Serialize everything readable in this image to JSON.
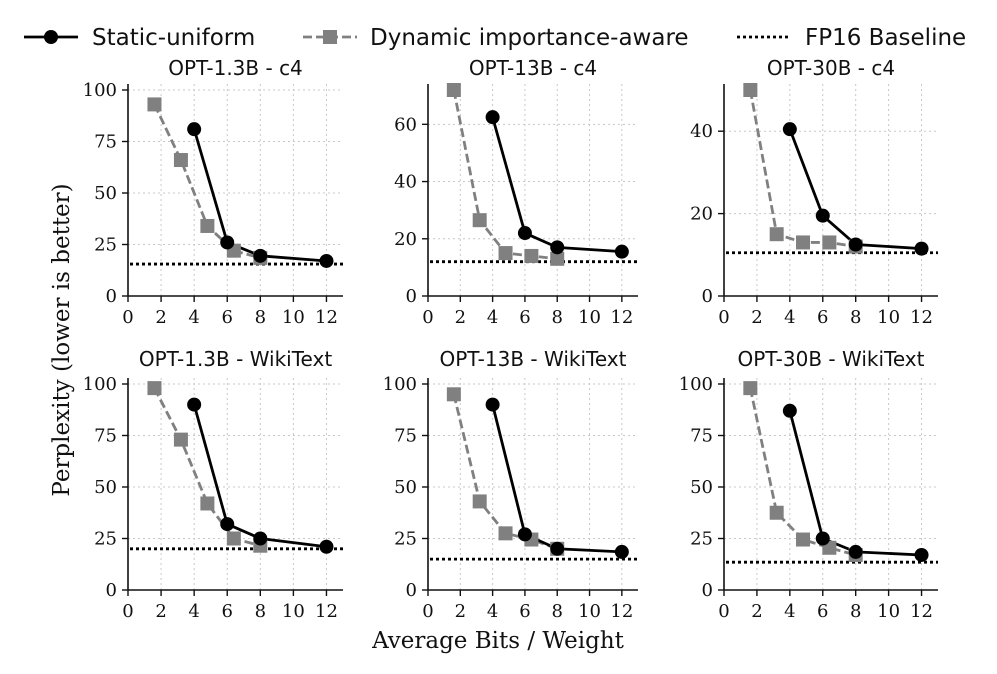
{
  "legend": {
    "static": "Static-uniform",
    "dynamic": "Dynamic importance-aware",
    "baseline": "FP16 Baseline"
  },
  "colors": {
    "static": "#000000",
    "dynamic": "#808080",
    "baseline": "#000000"
  },
  "figure": {
    "xlabel": "Average Bits / Weight",
    "ylabel": "Perplexity (lower is better)"
  },
  "chart_data": [
    {
      "type": "line",
      "title": "OPT-1.3B - c4",
      "xlim": [
        0,
        13
      ],
      "ylim": [
        0,
        100
      ],
      "xticks": [
        0,
        2,
        4,
        6,
        8,
        10,
        12
      ],
      "yticks": [
        0,
        25,
        50,
        75,
        100
      ],
      "series": [
        {
          "name": "Static-uniform",
          "x": [
            4,
            6,
            8,
            12
          ],
          "y": [
            81,
            26,
            19.5,
            17
          ]
        },
        {
          "name": "Dynamic importance-aware",
          "x": [
            1.6,
            3.2,
            4.8,
            6.4,
            8
          ],
          "y": [
            93,
            66,
            34,
            22,
            18.5
          ]
        }
      ],
      "baseline": 15.5
    },
    {
      "type": "line",
      "title": "OPT-13B - c4",
      "xlim": [
        0,
        13
      ],
      "ylim": [
        0,
        72
      ],
      "xticks": [
        0,
        2,
        4,
        6,
        8,
        10,
        12
      ],
      "yticks": [
        0,
        20,
        40,
        60
      ],
      "series": [
        {
          "name": "Static-uniform",
          "x": [
            4,
            6,
            8,
            12
          ],
          "y": [
            62.5,
            22,
            17,
            15.5
          ]
        },
        {
          "name": "Dynamic importance-aware",
          "x": [
            1.6,
            3.2,
            4.8,
            6.4,
            8
          ],
          "y": [
            72,
            26.5,
            15,
            14,
            13
          ]
        }
      ],
      "baseline": 12
    },
    {
      "type": "line",
      "title": "OPT-30B - c4",
      "xlim": [
        0,
        13
      ],
      "ylim": [
        0,
        50
      ],
      "xticks": [
        0,
        2,
        4,
        6,
        8,
        10,
        12
      ],
      "yticks": [
        0,
        20,
        40
      ],
      "series": [
        {
          "name": "Static-uniform",
          "x": [
            4,
            6,
            8,
            12
          ],
          "y": [
            40.5,
            19.5,
            12.5,
            11.5
          ]
        },
        {
          "name": "Dynamic importance-aware",
          "x": [
            1.6,
            3.2,
            4.8,
            6.4,
            8
          ],
          "y": [
            50,
            15,
            13,
            13,
            12
          ]
        }
      ],
      "baseline": 10.5
    },
    {
      "type": "line",
      "title": "OPT-1.3B - WikiText",
      "xlim": [
        0,
        13
      ],
      "ylim": [
        0,
        100
      ],
      "xticks": [
        0,
        2,
        4,
        6,
        8,
        10,
        12
      ],
      "yticks": [
        0,
        25,
        50,
        75,
        100
      ],
      "series": [
        {
          "name": "Static-uniform",
          "x": [
            4,
            6,
            8,
            12
          ],
          "y": [
            90,
            32,
            25,
            21
          ]
        },
        {
          "name": "Dynamic importance-aware",
          "x": [
            1.6,
            3.2,
            4.8,
            6.4,
            8
          ],
          "y": [
            98,
            73,
            42,
            25,
            21.5
          ]
        }
      ],
      "baseline": 20
    },
    {
      "type": "line",
      "title": "OPT-13B - WikiText",
      "xlim": [
        0,
        13
      ],
      "ylim": [
        0,
        100
      ],
      "xticks": [
        0,
        2,
        4,
        6,
        8,
        10,
        12
      ],
      "yticks": [
        0,
        25,
        50,
        75,
        100
      ],
      "series": [
        {
          "name": "Static-uniform",
          "x": [
            4,
            6,
            8,
            12
          ],
          "y": [
            90,
            27,
            20,
            18.5
          ]
        },
        {
          "name": "Dynamic importance-aware",
          "x": [
            1.6,
            3.2,
            4.8,
            6.4,
            8
          ],
          "y": [
            95,
            43,
            27.5,
            24.5,
            20
          ]
        }
      ],
      "baseline": 15
    },
    {
      "type": "line",
      "title": "OPT-30B - WikiText",
      "xlim": [
        0,
        13
      ],
      "ylim": [
        0,
        100
      ],
      "xticks": [
        0,
        2,
        4,
        6,
        8,
        10,
        12
      ],
      "yticks": [
        0,
        25,
        50,
        75,
        100
      ],
      "series": [
        {
          "name": "Static-uniform",
          "x": [
            4,
            6,
            8,
            12
          ],
          "y": [
            87,
            25,
            18.5,
            17
          ]
        },
        {
          "name": "Dynamic importance-aware",
          "x": [
            1.6,
            3.2,
            4.8,
            6.4,
            8
          ],
          "y": [
            98,
            37.5,
            24.5,
            20.5,
            17
          ]
        }
      ],
      "baseline": 13.5
    }
  ]
}
